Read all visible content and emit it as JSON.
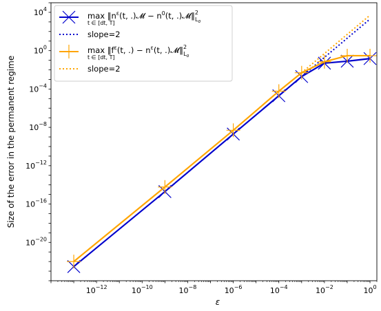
{
  "chart_data": {
    "type": "line",
    "xscale": "log",
    "yscale": "log",
    "xlabel": "ε",
    "ylabel": "Size of the error in the permanent regime",
    "xlim": [
      1e-14,
      2.0
    ],
    "ylim": [
      1e-24,
      100000.0
    ],
    "xticks": [
      1e-12,
      1e-10,
      1e-08,
      1e-06,
      0.0001,
      0.01,
      1
    ],
    "xtick_labels": [
      {
        "base": "10",
        "exp": "−12"
      },
      {
        "base": "10",
        "exp": "−10"
      },
      {
        "base": "10",
        "exp": "−8"
      },
      {
        "base": "10",
        "exp": "−6"
      },
      {
        "base": "10",
        "exp": "−4"
      },
      {
        "base": "10",
        "exp": "−2"
      },
      {
        "base": "10",
        "exp": "0"
      }
    ],
    "yticks": [
      1e-20,
      1e-16,
      1e-12,
      1e-08,
      0.0001,
      1,
      10000.0
    ],
    "ytick_labels": [
      {
        "base": "10",
        "exp": "−20"
      },
      {
        "base": "10",
        "exp": "−16"
      },
      {
        "base": "10",
        "exp": "−12"
      },
      {
        "base": "10",
        "exp": "−8"
      },
      {
        "base": "10",
        "exp": "−4"
      },
      {
        "base": "10",
        "exp": "0"
      },
      {
        "base": "10",
        "exp": "4"
      }
    ],
    "grid": false,
    "legend_position": "top-left",
    "series": [
      {
        "name": "max_{t∈[dt,T]} ‖n^ε(t,.)𝓜 − n^0(t,.)𝓜‖²_{L²_σ}",
        "legend": {
          "prefix": "max",
          "body": "‖n",
          "sup1": "ε",
          "mid": "(t, .)𝓜 − n",
          "sup2": "0",
          "tail": "(t, .)𝓜‖",
          "sup3": "2",
          "sub3": "L",
          "subsub3": "σ",
          "sub_max": "t ∈ [dt, T]"
        },
        "color": "#0000cc",
        "marker": "x",
        "style": "solid",
        "x": [
          1e-13,
          1e-09,
          1e-06,
          0.0001,
          0.001,
          0.01,
          0.1,
          1
        ],
        "y": [
          3e-23,
          2e-15,
          2e-09,
          2e-05,
          0.002,
          0.05,
          0.08,
          0.15
        ]
      },
      {
        "name": "slope=2",
        "color": "#0000cc",
        "marker": "none",
        "style": "dotted",
        "x": [
          0.001,
          1
        ],
        "y": [
          0.002,
          2000
        ]
      },
      {
        "name": "max_{t∈[dt,T]} ‖f^ε(t,.) − n^ε(t,.)𝓜‖²_{L²_σ}",
        "legend": {
          "prefix": "max",
          "body": "‖f",
          "sup1": "ε",
          "mid": "(t, .) − n",
          "sup2": "ε",
          "tail": "(t, .)𝓜‖",
          "sup3": "2",
          "sub3": "L",
          "subsub3": "σ",
          "sub_max": "t ∈ [dt, T]"
        },
        "color": "#ffa500",
        "marker": "+",
        "style": "solid",
        "x": [
          1e-13,
          1e-09,
          1e-06,
          0.0001,
          0.001,
          0.01,
          0.1,
          1
        ],
        "y": [
          1e-22,
          6e-15,
          5e-09,
          6e-05,
          0.005,
          0.07,
          0.3,
          0.3
        ]
      },
      {
        "name": "slope=2",
        "color": "#ffa500",
        "marker": "none",
        "style": "dotted",
        "x": [
          0.001,
          1
        ],
        "y": [
          0.005,
          5000
        ]
      }
    ]
  }
}
